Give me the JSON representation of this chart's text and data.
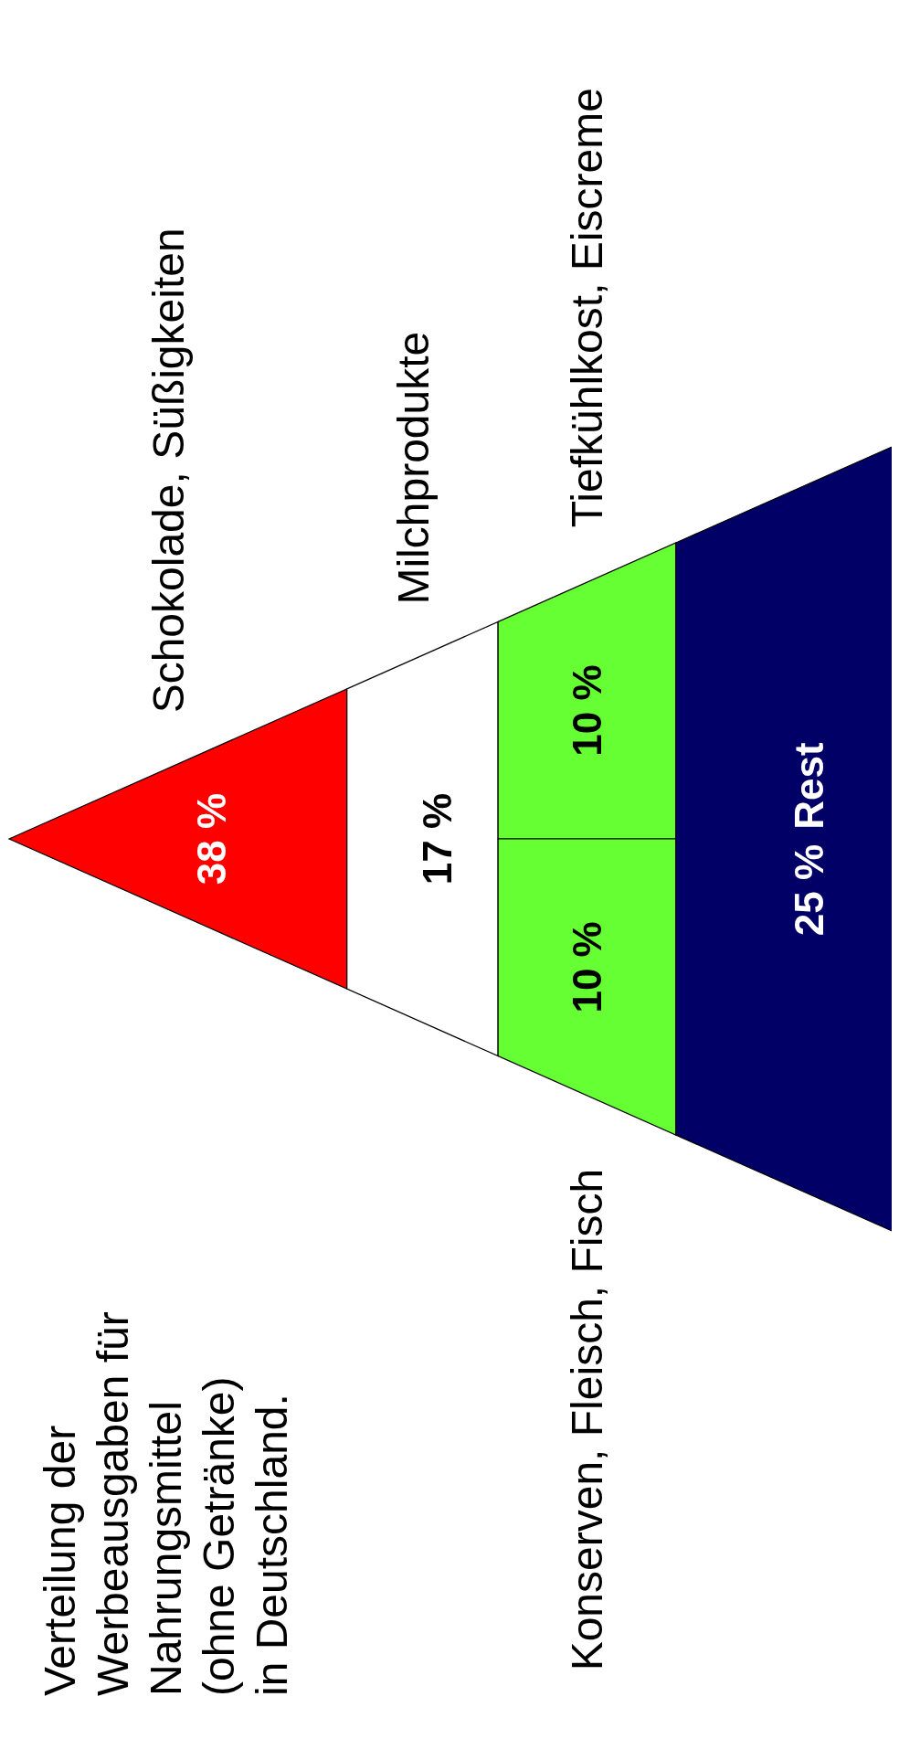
{
  "chart_data": {
    "type": "other",
    "title": "Verteilung der\nWerbeausgaben für\nNahrungsmittel\n(ohne Getränke)\nin Deutschland.",
    "categories": [
      "Schokolade, Süßigkeiten",
      "Milchprodukte",
      "Tiefkühlkost, Eiscreme",
      "Konserven, Fleisch, Fisch",
      "Rest"
    ],
    "values": [
      38,
      17,
      10,
      10,
      25
    ],
    "colors": [
      "#ff0000",
      "#ffffff",
      "#66ff33",
      "#66ff33",
      "#000066"
    ],
    "value_labels": [
      "38 %",
      "17 %",
      "10 %",
      "10 %",
      "25 %"
    ]
  }
}
